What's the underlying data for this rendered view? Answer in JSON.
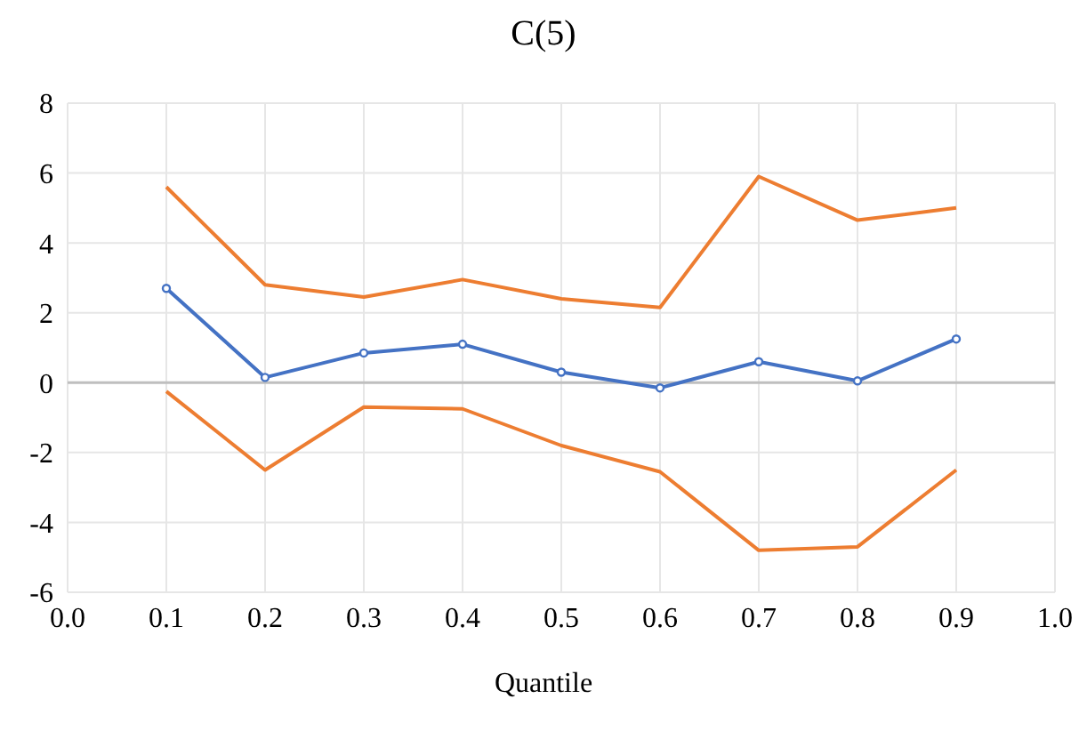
{
  "chart_data": {
    "type": "line",
    "title": "C(5)",
    "xlabel": "Quantile",
    "x": [
      0.1,
      0.2,
      0.3,
      0.4,
      0.5,
      0.6,
      0.7,
      0.8,
      0.9
    ],
    "series": [
      {
        "color": "#4472c4",
        "marker": "circle",
        "values": [
          2.7,
          0.15,
          0.85,
          1.1,
          0.3,
          -0.15,
          0.6,
          0.05,
          1.25
        ]
      },
      {
        "color": "#ed7d31",
        "marker": "none",
        "values": [
          5.6,
          2.8,
          2.45,
          2.95,
          2.4,
          2.15,
          5.9,
          4.65,
          5.0
        ]
      },
      {
        "color": "#ed7d31",
        "marker": "none",
        "values": [
          -0.25,
          -2.5,
          -0.7,
          -0.75,
          -1.8,
          -2.55,
          -4.8,
          -4.7,
          -2.5
        ]
      }
    ],
    "xlim": [
      0,
      1
    ],
    "xticks": [
      {
        "value": 0,
        "label": "0.0"
      },
      {
        "value": 0.1,
        "label": "0.1"
      },
      {
        "value": 0.2,
        "label": "0.2"
      },
      {
        "value": 0.3,
        "label": "0.3"
      },
      {
        "value": 0.4,
        "label": "0.4"
      },
      {
        "value": 0.5,
        "label": "0.5"
      },
      {
        "value": 0.6,
        "label": "0.6"
      },
      {
        "value": 0.7,
        "label": "0.7"
      },
      {
        "value": 0.8,
        "label": "0.8"
      },
      {
        "value": 0.9,
        "label": "0.9"
      },
      {
        "value": 1,
        "label": "1.0"
      }
    ],
    "ylim": [
      -6,
      8
    ],
    "yticks": [
      -6,
      -4,
      -2,
      0,
      2,
      4,
      6,
      8
    ],
    "ref_lines": [
      {
        "axis": "y",
        "value": 0,
        "color": "#bfbfbf"
      }
    ],
    "grid": true,
    "legend": false
  }
}
